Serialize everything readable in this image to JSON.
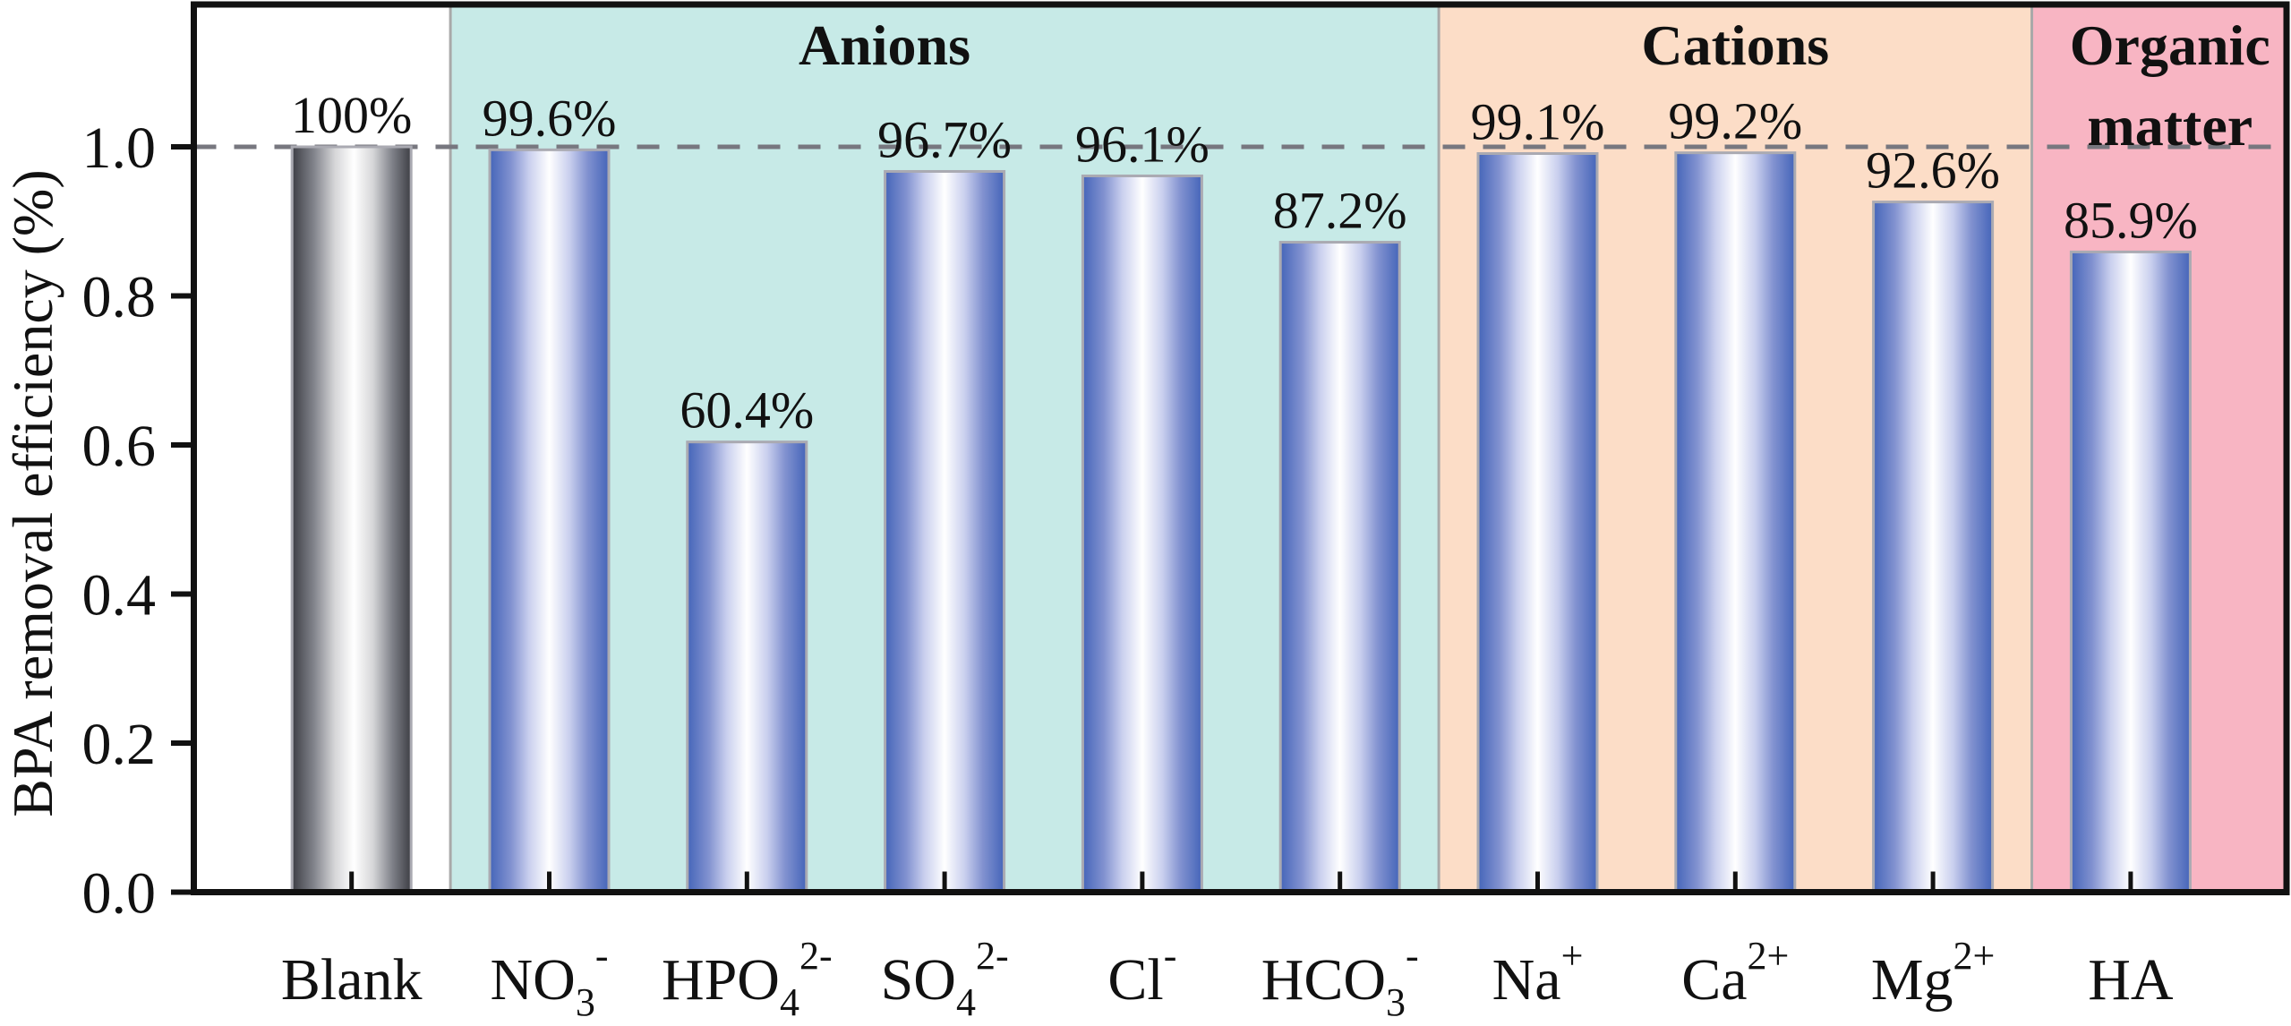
{
  "chart_data": {
    "type": "bar",
    "title": "",
    "xlabel": "",
    "ylabel": "BPA removal efficiency (%)",
    "ylim": [
      0,
      1.19
    ],
    "yticks": [
      0.0,
      0.2,
      0.4,
      0.6,
      0.8,
      1.0
    ],
    "ytick_labels": [
      "0.0",
      "0.2",
      "0.4",
      "0.6",
      "0.8",
      "1.0"
    ],
    "grid": false,
    "reference_line": {
      "y": 1.0,
      "style": "dashed",
      "color": "#77777f"
    },
    "categories": [
      "Blank",
      "NO3-",
      "HPO4 2-",
      "SO4 2-",
      "Cl-",
      "HCO3-",
      "Na+",
      "Ca2+",
      "Mg2+",
      "HA"
    ],
    "category_labels": [
      {
        "base": "Blank",
        "sub": "",
        "sup": ""
      },
      {
        "base": "NO",
        "sub": "3",
        "sup": "-"
      },
      {
        "base": "HPO",
        "sub": "4",
        "sup": "2-"
      },
      {
        "base": "SO",
        "sub": "4",
        "sup": "2-"
      },
      {
        "base": "Cl",
        "sub": "",
        "sup": "-"
      },
      {
        "base": "HCO",
        "sub": "3",
        "sup": "-"
      },
      {
        "base": "Na",
        "sub": "",
        "sup": "+"
      },
      {
        "base": "Ca",
        "sub": "",
        "sup": "2+"
      },
      {
        "base": "Mg",
        "sub": "",
        "sup": "2+"
      },
      {
        "base": "HA",
        "sub": "",
        "sup": ""
      }
    ],
    "values": [
      1.0,
      0.996,
      0.604,
      0.967,
      0.961,
      0.872,
      0.991,
      0.992,
      0.926,
      0.859
    ],
    "data_labels": [
      "100%",
      "99.6%",
      "60.4%",
      "96.7%",
      "96.1%",
      "87.2%",
      "99.1%",
      "99.2%",
      "92.6%",
      "85.9%"
    ],
    "bar_styles": [
      "gray",
      "blue",
      "blue",
      "blue",
      "blue",
      "blue",
      "blue",
      "blue",
      "blue",
      "blue"
    ],
    "groups": [
      {
        "label": "",
        "start_index": 0,
        "end_index": 0,
        "color": "#ffffff"
      },
      {
        "label": "Anions",
        "start_index": 1,
        "end_index": 5,
        "color": "#c7eae7"
      },
      {
        "label": "Cations",
        "start_index": 6,
        "end_index": 8,
        "color": "#fcddc7"
      },
      {
        "label": "Organic matter",
        "label_lines": [
          "Organic",
          "matter"
        ],
        "start_index": 9,
        "end_index": 9,
        "color": "#f8b5c3"
      }
    ],
    "legend": null
  },
  "colors": {
    "bar_blue_edge": "#4565b9",
    "bar_blue_mid": "#a7b2e0",
    "bar_gray_edge": "#3d3e44",
    "bar_gray_mid": "#a5a6aa",
    "bar_border": "#aaaab2",
    "axis": "#111111",
    "region_divider": "#a9a9a9"
  }
}
